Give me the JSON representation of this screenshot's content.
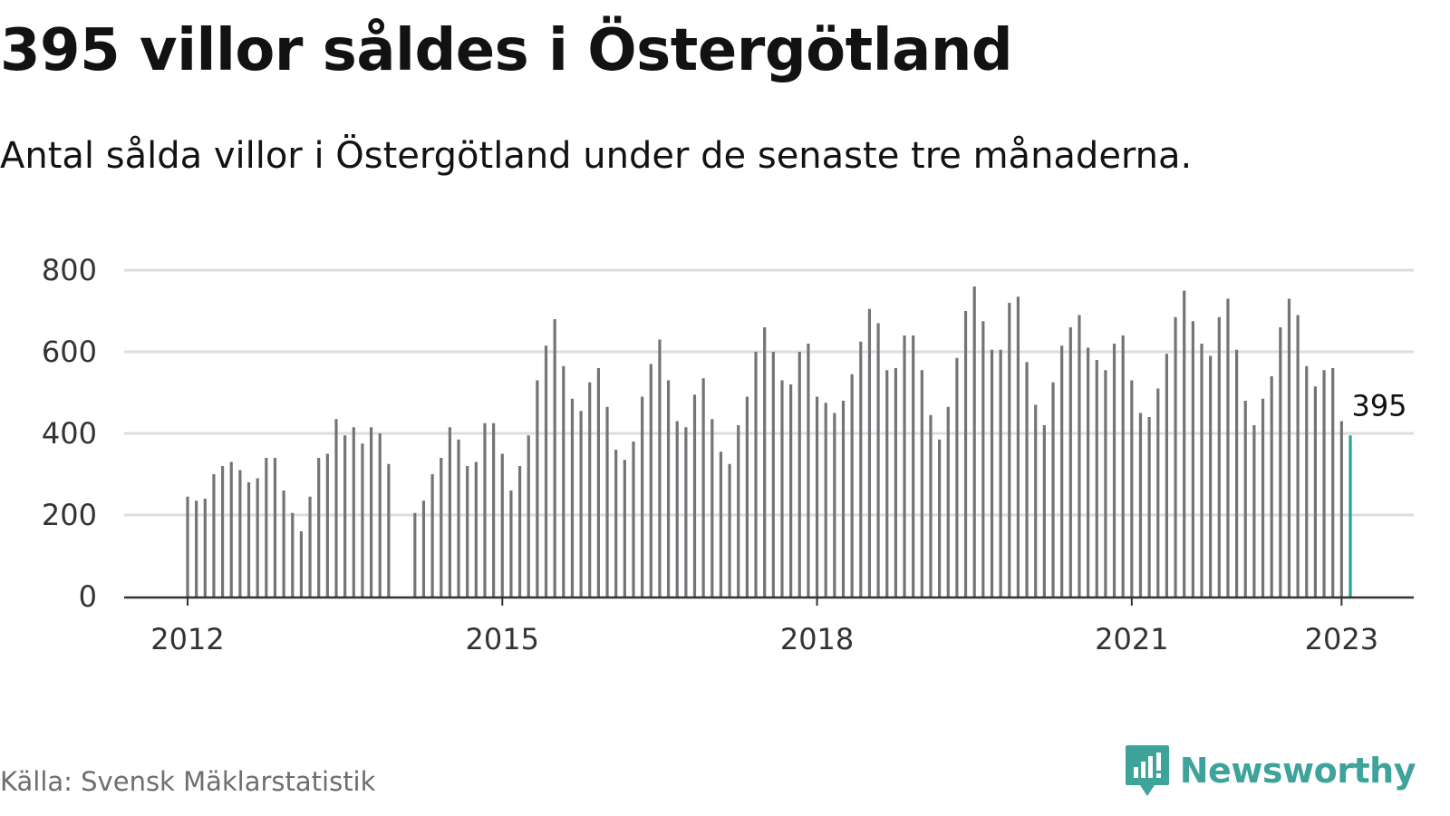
{
  "header": {
    "title": "395 villor såldes i Östergötland",
    "subtitle": "Antal sålda villor i Östergötland under de senaste tre månaderna."
  },
  "footer": {
    "source": "Källa: Svensk Mäklarstatistik",
    "logo_text": "Newsworthy",
    "logo_icon": "chart-bubble-icon"
  },
  "colors": {
    "bar": "#747478",
    "highlight": "#2aa198",
    "grid": "#dddddd",
    "axis": "#333333",
    "logo": "#3ea39a"
  },
  "chart_data": {
    "type": "bar",
    "title": "",
    "xlabel": "",
    "ylabel": "",
    "ylim": [
      0,
      800
    ],
    "yticks": [
      "0",
      "200",
      "400",
      "600",
      "800"
    ],
    "xticks": [
      "2012",
      "2015",
      "2018",
      "2021",
      "2023"
    ],
    "x_start": "2012-01",
    "x_end": "2023-01",
    "highlight_label": "395",
    "series": [
      {
        "values": [
          245,
          235,
          240,
          300,
          320,
          330,
          310,
          280,
          290,
          340,
          340,
          260,
          205,
          160,
          245,
          340,
          350,
          435,
          395,
          415,
          375,
          415,
          400,
          325,
          0,
          0,
          205,
          235,
          300,
          340,
          415,
          385,
          320,
          330,
          425,
          425,
          350,
          260,
          320,
          395,
          530,
          615,
          680,
          565,
          485,
          455,
          525,
          560,
          465,
          360,
          335,
          380,
          490,
          570,
          630,
          530,
          430,
          415,
          495,
          535,
          435,
          355,
          325,
          420,
          490,
          600,
          660,
          600,
          530,
          520,
          600,
          620,
          490,
          475,
          450,
          480,
          545,
          625,
          705,
          670,
          555,
          560,
          640,
          640,
          555,
          445,
          385,
          465,
          585,
          700,
          760,
          675,
          605,
          605,
          720,
          735,
          575,
          470,
          420,
          525,
          615,
          660,
          690,
          610,
          580,
          555,
          620,
          640,
          530,
          450,
          440,
          510,
          595,
          685,
          750,
          675,
          620,
          590,
          685,
          730,
          605,
          480,
          420,
          485,
          540,
          660,
          730,
          690,
          565,
          515,
          555,
          560,
          430,
          395
        ]
      }
    ]
  }
}
